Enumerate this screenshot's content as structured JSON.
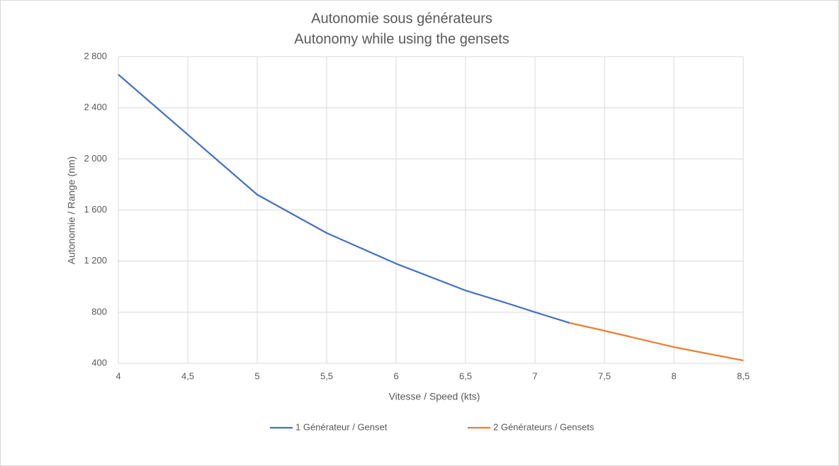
{
  "chart_data": {
    "type": "line",
    "title": "Autonomie sous générateurs",
    "subtitle": "Autonomy while using the gensets",
    "x_label": "Vitesse / Speed (kts)",
    "y_label": "Autonomie / Range (nm)",
    "x": [
      4,
      4.5,
      5,
      5.5,
      6,
      6.5,
      6.8,
      7,
      7.25,
      7.5,
      8,
      8.5
    ],
    "series": [
      {
        "name": "1 Générateur / Genset",
        "color": "#4472c4",
        "values": [
          2660,
          2190,
          1720,
          1420,
          1180,
          970,
          870,
          800,
          716,
          null,
          null,
          null
        ]
      },
      {
        "name": "2 Générateurs / Gensets",
        "color": "#ed7d31",
        "values": [
          null,
          null,
          null,
          null,
          null,
          null,
          null,
          null,
          716,
          655,
          527,
          422
        ]
      }
    ],
    "xlim": [
      4,
      8.5
    ],
    "xticks": [
      4,
      {
        "value": 4.5,
        "label": "4,5"
      },
      5,
      {
        "value": 5.5,
        "label": "5,5"
      },
      6,
      {
        "value": 6.5,
        "label": "6,5"
      },
      7,
      {
        "value": 7.5,
        "label": "7,5"
      },
      8,
      {
        "value": 8.5,
        "label": "8,5"
      }
    ],
    "ylim": [
      400,
      2800
    ],
    "yticks": [
      400,
      800,
      {
        "value": 1200,
        "label": "1 200"
      },
      {
        "value": 1600,
        "label": "1 600"
      },
      {
        "value": 2000,
        "label": "2 000"
      },
      {
        "value": 2400,
        "label": "2 400"
      },
      {
        "value": 2800,
        "label": "2 800"
      }
    ],
    "grid": true,
    "legend": "bottom"
  }
}
